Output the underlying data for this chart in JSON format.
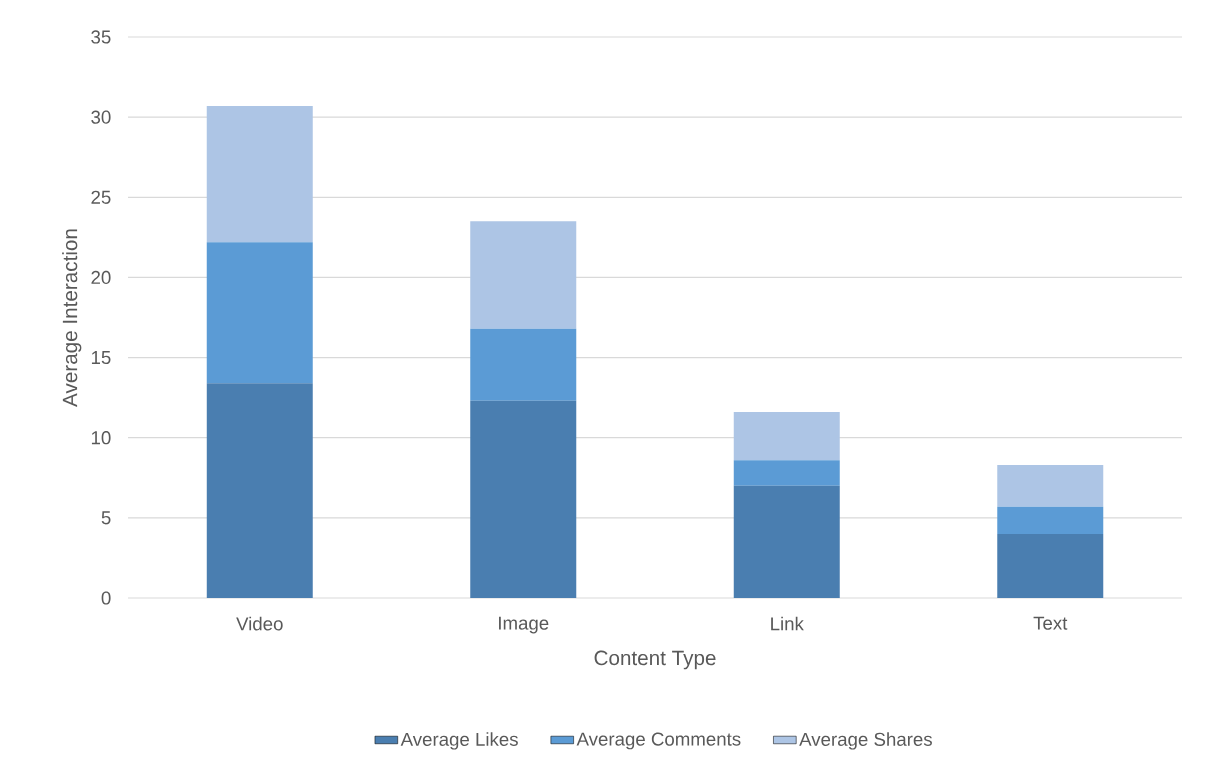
{
  "chart_data": {
    "type": "bar",
    "stacked": true,
    "xlabel": "Content Type",
    "ylabel": "Average Interaction",
    "categories": [
      "Video",
      "Image",
      "Link",
      "Text"
    ],
    "series": [
      {
        "name": "Average Likes",
        "color": "#4a7eb0",
        "values": [
          13.4,
          12.3,
          7.0,
          4.0
        ]
      },
      {
        "name": "Average Comments",
        "color": "#5b9bd5",
        "values": [
          8.8,
          4.5,
          1.6,
          1.7
        ]
      },
      {
        "name": "Average Shares",
        "color": "#adc5e5",
        "values": [
          8.5,
          6.7,
          3.0,
          2.6
        ]
      }
    ],
    "ylim": [
      0,
      35
    ],
    "yticks": [
      0,
      5,
      10,
      15,
      20,
      25,
      30,
      35
    ],
    "grid": "y",
    "legend": "bottom"
  }
}
